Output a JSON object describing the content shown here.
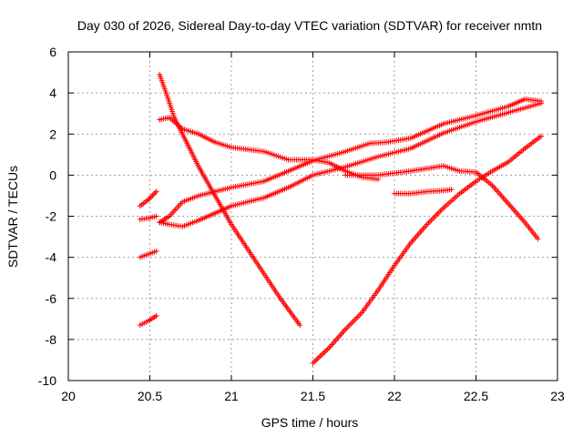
{
  "chart_data": {
    "type": "scatter",
    "title": "Day 030 of 2026, Sidereal Day-to-day VTEC variation (SDTVAR) for receiver nmtn",
    "xlabel": "GPS time / hours",
    "ylabel": "SDTVAR / TECUs",
    "xlim": [
      20,
      23
    ],
    "ylim": [
      -10,
      6
    ],
    "xticks": [
      20,
      20.5,
      21,
      21.5,
      22,
      22.5,
      23
    ],
    "xtick_labels": [
      "20",
      "20.5",
      "21",
      "21.5",
      "22",
      "22.5",
      "23"
    ],
    "yticks": [
      -10,
      -8,
      -6,
      -4,
      -2,
      0,
      2,
      4,
      6
    ],
    "ytick_labels": [
      "-10",
      "-8",
      "-6",
      "-4",
      "-2",
      "0",
      "2",
      "4",
      "6"
    ],
    "grid": true,
    "marker": "+",
    "color": "#ff0000",
    "series": [
      {
        "points": [
          [
            20.44,
            -1.5
          ],
          [
            20.49,
            -1.2
          ],
          [
            20.54,
            -0.8
          ]
        ]
      },
      {
        "points": [
          [
            20.44,
            -2.15
          ],
          [
            20.49,
            -2.1
          ],
          [
            20.54,
            -2.0
          ]
        ]
      },
      {
        "points": [
          [
            20.44,
            -4.0
          ],
          [
            20.49,
            -3.85
          ],
          [
            20.54,
            -3.7
          ]
        ]
      },
      {
        "points": [
          [
            20.44,
            -7.3
          ],
          [
            20.49,
            -7.1
          ],
          [
            20.54,
            -6.85
          ]
        ]
      },
      {
        "points": [
          [
            20.56,
            4.9
          ],
          [
            20.6,
            4.0
          ],
          [
            20.65,
            2.8
          ],
          [
            20.7,
            2.0
          ],
          [
            20.8,
            0.4
          ],
          [
            20.9,
            -1.0
          ],
          [
            21.0,
            -2.4
          ],
          [
            21.1,
            -3.6
          ],
          [
            21.2,
            -4.8
          ],
          [
            21.3,
            -6.0
          ],
          [
            21.42,
            -7.3
          ]
        ]
      },
      {
        "points": [
          [
            20.56,
            2.7
          ],
          [
            20.62,
            2.8
          ],
          [
            20.7,
            2.25
          ],
          [
            20.8,
            2.0
          ],
          [
            20.9,
            1.6
          ],
          [
            21.0,
            1.35
          ],
          [
            21.2,
            1.15
          ],
          [
            21.35,
            0.75
          ],
          [
            21.5,
            0.75
          ],
          [
            21.6,
            0.6
          ],
          [
            21.7,
            0.2
          ],
          [
            21.8,
            -0.1
          ],
          [
            21.9,
            -0.2
          ]
        ]
      },
      {
        "points": [
          [
            20.56,
            -2.3
          ],
          [
            20.62,
            -2.4
          ],
          [
            20.7,
            -2.5
          ],
          [
            20.8,
            -2.2
          ],
          [
            20.9,
            -1.85
          ],
          [
            21.0,
            -1.5
          ],
          [
            21.2,
            -1.1
          ],
          [
            21.35,
            -0.6
          ],
          [
            21.5,
            0.0
          ],
          [
            21.7,
            0.4
          ],
          [
            21.9,
            0.9
          ],
          [
            22.1,
            1.3
          ],
          [
            22.3,
            2.05
          ],
          [
            22.5,
            2.6
          ],
          [
            22.7,
            3.05
          ],
          [
            22.9,
            3.5
          ]
        ]
      },
      {
        "points": [
          [
            20.56,
            -2.3
          ],
          [
            20.62,
            -2.0
          ],
          [
            20.7,
            -1.3
          ],
          [
            20.8,
            -1.0
          ],
          [
            20.9,
            -0.8
          ],
          [
            21.0,
            -0.6
          ],
          [
            21.2,
            -0.3
          ],
          [
            21.35,
            0.2
          ],
          [
            21.5,
            0.7
          ],
          [
            21.7,
            1.15
          ],
          [
            21.85,
            1.55
          ],
          [
            21.95,
            1.6
          ],
          [
            22.1,
            1.8
          ],
          [
            22.3,
            2.5
          ],
          [
            22.5,
            2.9
          ],
          [
            22.7,
            3.35
          ],
          [
            22.8,
            3.7
          ],
          [
            22.9,
            3.6
          ]
        ]
      },
      {
        "points": [
          [
            21.7,
            0.0
          ],
          [
            21.9,
            0.0
          ],
          [
            22.1,
            0.2
          ],
          [
            22.3,
            0.45
          ],
          [
            22.4,
            0.2
          ],
          [
            22.5,
            0.15
          ],
          [
            22.6,
            -0.5
          ],
          [
            22.7,
            -1.4
          ],
          [
            22.8,
            -2.3
          ],
          [
            22.88,
            -3.1
          ]
        ]
      },
      {
        "points": [
          [
            22.0,
            -0.9
          ],
          [
            22.1,
            -0.9
          ],
          [
            22.2,
            -0.8
          ],
          [
            22.3,
            -0.75
          ],
          [
            22.35,
            -0.7
          ]
        ]
      },
      {
        "points": [
          [
            21.5,
            -9.15
          ],
          [
            21.6,
            -8.4
          ],
          [
            21.7,
            -7.5
          ],
          [
            21.8,
            -6.7
          ],
          [
            21.9,
            -5.6
          ],
          [
            22.0,
            -4.4
          ],
          [
            22.1,
            -3.3
          ],
          [
            22.2,
            -2.4
          ],
          [
            22.3,
            -1.6
          ],
          [
            22.4,
            -0.9
          ],
          [
            22.5,
            -0.3
          ],
          [
            22.6,
            0.2
          ],
          [
            22.7,
            0.65
          ],
          [
            22.8,
            1.3
          ],
          [
            22.9,
            1.9
          ]
        ]
      }
    ]
  }
}
